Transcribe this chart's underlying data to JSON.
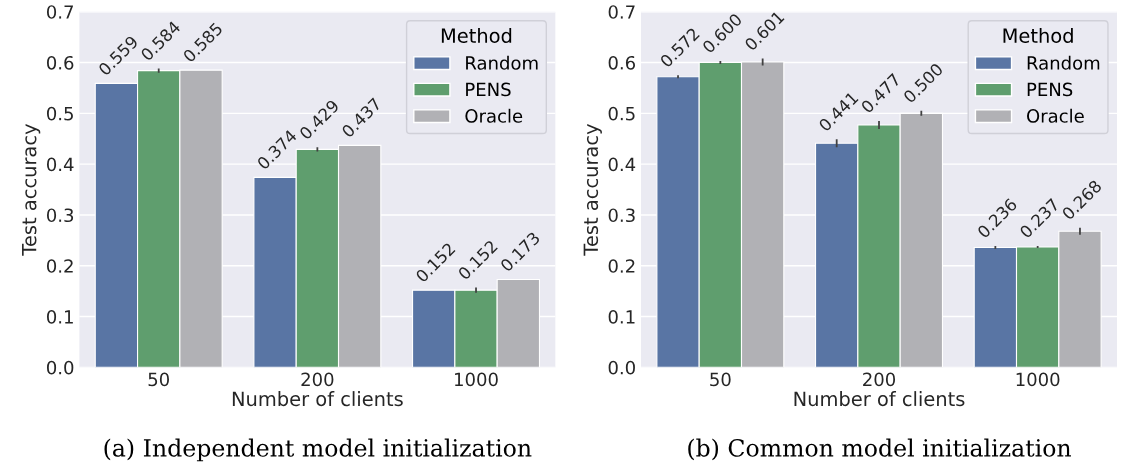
{
  "chart_data": [
    {
      "type": "bar",
      "title": "(a) Independent model initialization",
      "xlabel": "Number of clients",
      "ylabel": "Test accuracy",
      "categories": [
        "50",
        "200",
        "1000"
      ],
      "ylim": [
        0,
        0.7
      ],
      "yticks": [
        {
          "value": 0,
          "label": "0.0"
        },
        0.1,
        0.2,
        0.3,
        0.4,
        0.5,
        0.6,
        0.7
      ],
      "grid": "y",
      "legend": "top right",
      "legend_title": "Method",
      "series": [
        {
          "name": "Random",
          "color": "#5975a4",
          "values": [
            0.559,
            0.374,
            0.152
          ],
          "value_labels": [
            "0.559",
            "0.374",
            "0.152"
          ]
        },
        {
          "name": "PENS",
          "color": "#5f9e6e",
          "values": [
            0.584,
            0.429,
            0.152
          ],
          "errors": [
            0.004,
            0.004,
            0.005
          ],
          "value_labels": [
            "0.584",
            "0.429",
            "0.152"
          ]
        },
        {
          "name": "Oracle",
          "color": "#b1b1b5",
          "values": [
            0.585,
            0.437,
            0.173
          ],
          "value_labels": [
            "0.585",
            "0.437",
            "0.173"
          ]
        }
      ]
    },
    {
      "type": "bar",
      "title": "(b) Common model initialization",
      "xlabel": "Number of clients",
      "ylabel": "Test accuracy",
      "categories": [
        "50",
        "200",
        "1000"
      ],
      "ylim": [
        0,
        0.7
      ],
      "yticks": [
        {
          "value": 0,
          "label": "0.0"
        },
        0.1,
        0.2,
        0.3,
        0.4,
        0.5,
        0.6,
        0.7
      ],
      "grid": "y",
      "legend": "top right",
      "legend_title": "Method",
      "series": [
        {
          "name": "Random",
          "color": "#5975a4",
          "values": [
            0.572,
            0.441,
            0.236
          ],
          "errors": [
            0.003,
            0.008,
            0.003
          ],
          "value_labels": [
            "0.572",
            "0.441",
            "0.236"
          ]
        },
        {
          "name": "PENS",
          "color": "#5f9e6e",
          "values": [
            0.6,
            0.477,
            0.237
          ],
          "errors": [
            0.003,
            0.008,
            0.002
          ],
          "value_labels": [
            "0.600",
            "0.477",
            "0.237"
          ]
        },
        {
          "name": "Oracle",
          "color": "#b1b1b5",
          "values": [
            0.601,
            0.5,
            0.268
          ],
          "errors": [
            0.007,
            0.005,
            0.007
          ],
          "value_labels": [
            "0.601",
            "0.500",
            "0.268"
          ]
        }
      ]
    }
  ]
}
